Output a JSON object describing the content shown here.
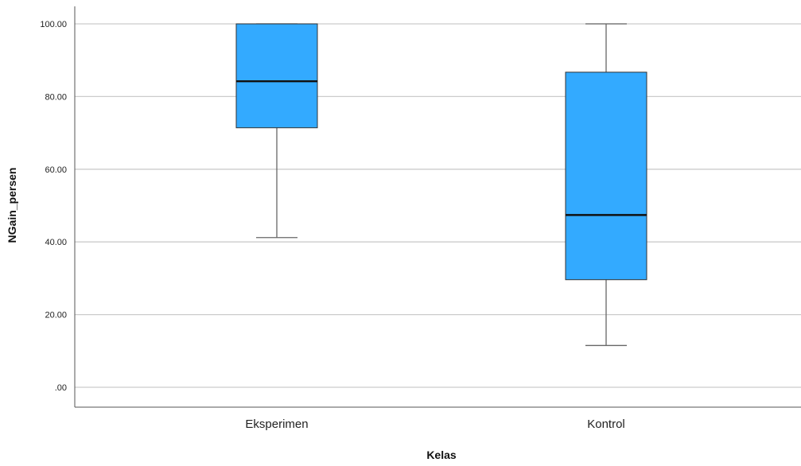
{
  "chart_data": {
    "type": "boxplot",
    "xlabel": "Kelas",
    "ylabel": "NGain_persen",
    "ylim": [
      -5,
      105
    ],
    "yticks": [
      0,
      20,
      40,
      60,
      80,
      100
    ],
    "ytick_labels": [
      ".00",
      "20.00",
      "40.00",
      "60.00",
      "80.00",
      "100.00"
    ],
    "grid": "horizontal",
    "categories": [
      "Eksperimen",
      "Kontrol"
    ],
    "boxes": [
      {
        "category": "Eksperimen",
        "min": 41.2,
        "q1": 71.4,
        "median": 84.2,
        "q3": 100.0,
        "max": 100.0
      },
      {
        "category": "Kontrol",
        "min": 11.5,
        "q1": 29.6,
        "median": 47.4,
        "q3": 86.7,
        "max": 100.0
      }
    ],
    "colors": {
      "box_fill": "#33aaff",
      "box_stroke": "#333333",
      "median": "#111111",
      "whisker": "#666666",
      "grid": "#cccccc",
      "axis": "#555555"
    }
  }
}
